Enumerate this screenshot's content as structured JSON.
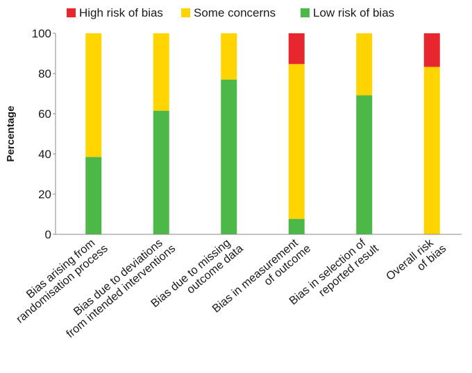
{
  "chart_data": {
    "type": "bar",
    "stacked": true,
    "orientation": "vertical",
    "title": "",
    "xlabel": "",
    "ylabel": "Percentage",
    "ylim": [
      0,
      100
    ],
    "yticks": [
      0,
      20,
      40,
      60,
      80,
      100
    ],
    "grid": false,
    "legend_position": "top",
    "categories": [
      [
        "Bias arising from",
        "randomisation process"
      ],
      [
        "Bias due to deviations",
        "from intended interventions"
      ],
      [
        "Bias due to missing",
        "outcome data"
      ],
      [
        "Bias in measurement",
        "of outcome"
      ],
      [
        "Bias in selection of",
        "reported result"
      ],
      [
        "Overall risk",
        "of bias"
      ]
    ],
    "series": [
      {
        "name": "Low risk of bias",
        "color": "#4cb848",
        "values": [
          38.5,
          61.5,
          77,
          7.7,
          69.2,
          0
        ]
      },
      {
        "name": "Some concerns",
        "color": "#ffd400",
        "values": [
          61.5,
          38.5,
          23,
          77,
          30.8,
          83.3
        ]
      },
      {
        "name": "High risk of bias",
        "color": "#e8262d",
        "values": [
          0,
          0,
          0,
          15.3,
          0,
          16.7
        ]
      }
    ],
    "legend_order": [
      "High risk of bias",
      "Some concerns",
      "Low risk of bias"
    ]
  }
}
